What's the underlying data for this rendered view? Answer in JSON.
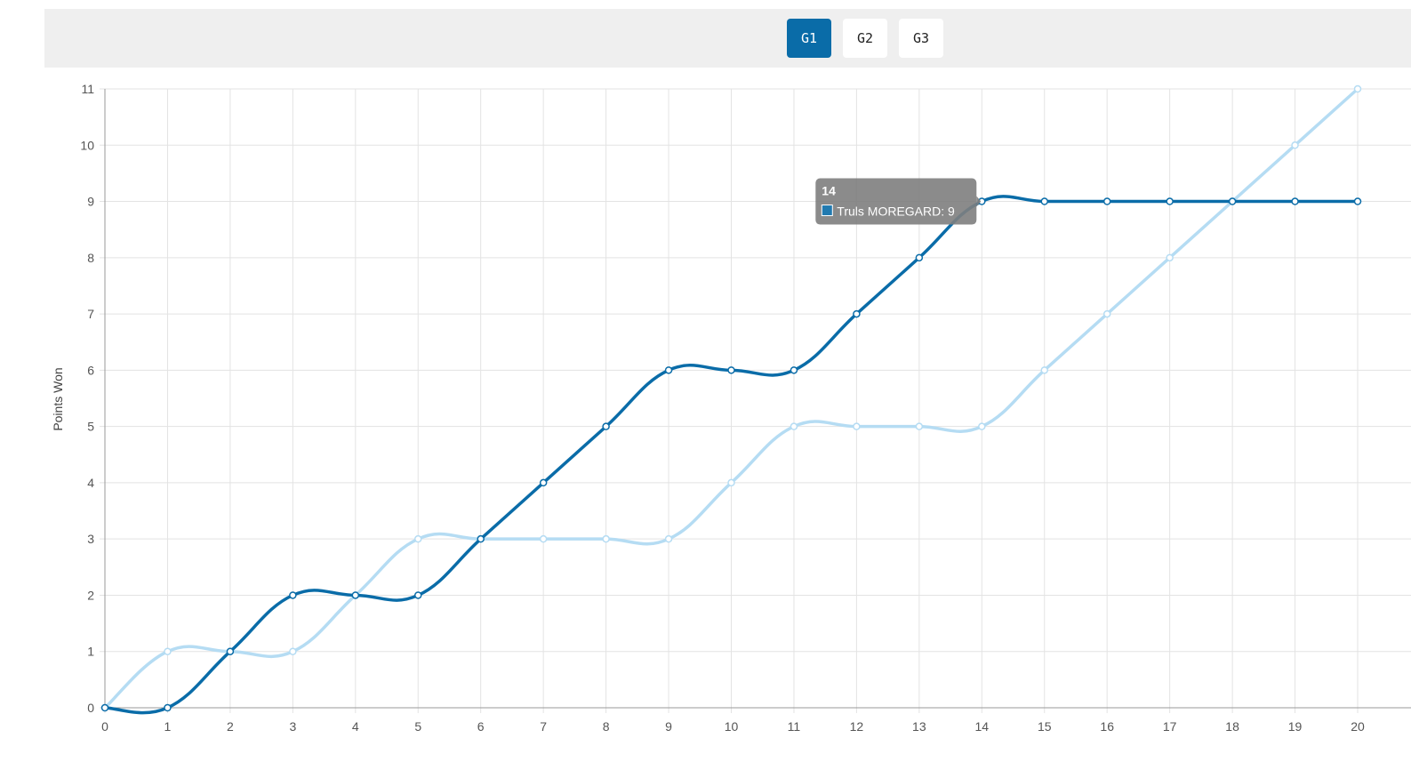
{
  "game_tabs": [
    {
      "label": "G1",
      "active": true
    },
    {
      "label": "G2",
      "active": false
    },
    {
      "label": "G3",
      "active": false
    }
  ],
  "colors": {
    "accent": "#0a6ca8",
    "series_dark": "#0a6ca8",
    "series_light": "#b5dcf3",
    "tab_bar_background": "#efefef",
    "grid": "#e3e3e3",
    "tooltip_background": "#7f7f7f"
  },
  "chart_data": {
    "type": "line",
    "ylabel": "Points Won",
    "xlabel": "",
    "xlim": [
      0,
      20
    ],
    "ylim": [
      0,
      11
    ],
    "x_ticks": [
      0,
      1,
      2,
      3,
      4,
      5,
      6,
      7,
      8,
      9,
      10,
      11,
      12,
      13,
      14,
      15,
      16,
      17,
      18,
      19,
      20
    ],
    "y_ticks": [
      0,
      1,
      2,
      3,
      4,
      5,
      6,
      7,
      8,
      9,
      10,
      11
    ],
    "grid": true,
    "curve": "smooth",
    "series": [
      {
        "name": "",
        "color": "#b5dcf3",
        "x": [
          0,
          1,
          2,
          3,
          4,
          5,
          6,
          7,
          8,
          9,
          10,
          11,
          12,
          13,
          14,
          15,
          16,
          17,
          18,
          19,
          20
        ],
        "y": [
          0,
          1,
          1,
          1,
          2,
          3,
          3,
          3,
          3,
          3,
          4,
          5,
          5,
          5,
          5,
          6,
          7,
          8,
          9,
          10,
          11
        ]
      },
      {
        "name": "Truls MOREGARD",
        "color": "#0a6ca8",
        "x": [
          0,
          1,
          2,
          3,
          4,
          5,
          6,
          7,
          8,
          9,
          10,
          11,
          12,
          13,
          14,
          15,
          16,
          17,
          18,
          19,
          20
        ],
        "y": [
          0,
          0,
          1,
          2,
          2,
          2,
          3,
          4,
          5,
          6,
          6,
          6,
          7,
          8,
          9,
          9,
          9,
          9,
          9,
          9,
          9
        ]
      }
    ],
    "tooltip": {
      "title": "14",
      "body": "Truls MOREGARD: 9",
      "series_index": 1,
      "x": 14,
      "y": 9
    }
  }
}
